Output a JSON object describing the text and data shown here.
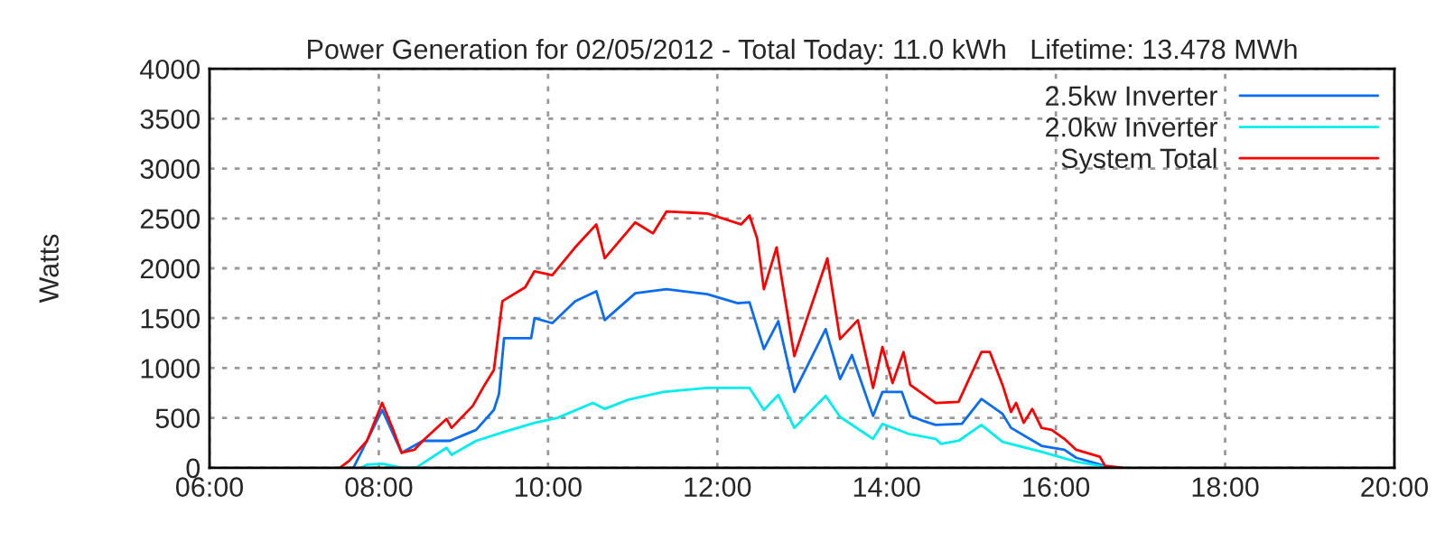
{
  "chart_data": {
    "type": "line",
    "title": "Power Generation for 02/05/2012 - Total Today: 11.0 kWh   Lifetime: 13.478 MWh",
    "ylabel": "Watts",
    "xlim": [
      6,
      20
    ],
    "xticks": [
      {
        "value": 6,
        "label": "06:00"
      },
      {
        "value": 8,
        "label": "08:00"
      },
      {
        "value": 10,
        "label": "10:00"
      },
      {
        "value": 12,
        "label": "12:00"
      },
      {
        "value": 14,
        "label": "14:00"
      },
      {
        "value": 16,
        "label": "16:00"
      },
      {
        "value": 18,
        "label": "18:00"
      },
      {
        "value": 20,
        "label": "20:00"
      }
    ],
    "ylim": [
      0,
      4000
    ],
    "yticks": [
      0,
      500,
      1000,
      1500,
      2000,
      2500,
      3000,
      3500,
      4000
    ],
    "grid": true,
    "legend": "top right",
    "line_style": "solid",
    "series": [
      {
        "name": "2.5kw Inverter",
        "color": "#0a6cf0",
        "x": [
          7.7,
          7.79,
          8.04,
          8.27,
          8.52,
          8.84,
          9.15,
          9.36,
          9.42,
          9.48,
          9.8,
          9.84,
          10.05,
          10.32,
          10.57,
          10.67,
          11.03,
          11.4,
          11.88,
          12.24,
          12.38,
          12.55,
          12.72,
          12.91,
          13.28,
          13.45,
          13.59,
          13.84,
          13.95,
          14.18,
          14.28,
          14.43,
          14.58,
          14.89,
          15.12,
          15.37,
          15.47,
          15.83,
          16.1,
          16.24,
          16.66
        ],
        "values": [
          0,
          150,
          580,
          150,
          270,
          270,
          380,
          580,
          740,
          1300,
          1300,
          1500,
          1450,
          1670,
          1770,
          1480,
          1750,
          1790,
          1740,
          1650,
          1660,
          1190,
          1470,
          760,
          1390,
          890,
          1130,
          520,
          760,
          760,
          520,
          470,
          430,
          440,
          690,
          540,
          400,
          220,
          180,
          100,
          0
        ]
      },
      {
        "name": "2.0kw Inverter",
        "color": "#00eeee",
        "x": [
          7.79,
          7.86,
          8.04,
          8.27,
          8.44,
          8.8,
          8.86,
          9.15,
          9.48,
          9.84,
          10.11,
          10.53,
          10.67,
          10.94,
          11.36,
          11.88,
          12.38,
          12.55,
          12.72,
          12.91,
          13.28,
          13.45,
          13.84,
          13.95,
          14.26,
          14.58,
          14.64,
          14.85,
          15.12,
          15.37,
          15.83,
          16.24,
          16.66
        ],
        "values": [
          0,
          30,
          40,
          0,
          0,
          200,
          130,
          270,
          360,
          450,
          500,
          650,
          590,
          680,
          760,
          800,
          800,
          580,
          730,
          400,
          720,
          510,
          290,
          440,
          340,
          290,
          240,
          270,
          430,
          260,
          160,
          60,
          0
        ]
      },
      {
        "name": "System Total",
        "color": "#ff0000",
        "x": [
          7.54,
          7.65,
          7.86,
          8.04,
          8.17,
          8.27,
          8.42,
          8.52,
          8.8,
          8.86,
          9.11,
          9.25,
          9.36,
          9.46,
          9.73,
          9.84,
          10.05,
          10.32,
          10.57,
          10.67,
          11.03,
          11.24,
          11.4,
          11.88,
          12.28,
          12.38,
          12.47,
          12.55,
          12.7,
          12.91,
          13.3,
          13.45,
          13.66,
          13.84,
          13.95,
          14.07,
          14.2,
          14.28,
          14.43,
          14.58,
          14.85,
          15.12,
          15.22,
          15.37,
          15.47,
          15.53,
          15.62,
          15.72,
          15.83,
          15.95,
          16.1,
          16.24,
          16.52,
          16.58,
          16.79
        ],
        "values": [
          0,
          70,
          270,
          650,
          380,
          150,
          180,
          270,
          490,
          400,
          620,
          830,
          980,
          1670,
          1810,
          1970,
          1930,
          2210,
          2440,
          2100,
          2460,
          2350,
          2570,
          2550,
          2440,
          2530,
          2300,
          1790,
          2210,
          1120,
          2100,
          1290,
          1480,
          800,
          1210,
          850,
          1160,
          830,
          740,
          650,
          660,
          1160,
          1160,
          830,
          560,
          650,
          450,
          590,
          400,
          380,
          290,
          180,
          110,
          20,
          0
        ]
      }
    ]
  }
}
